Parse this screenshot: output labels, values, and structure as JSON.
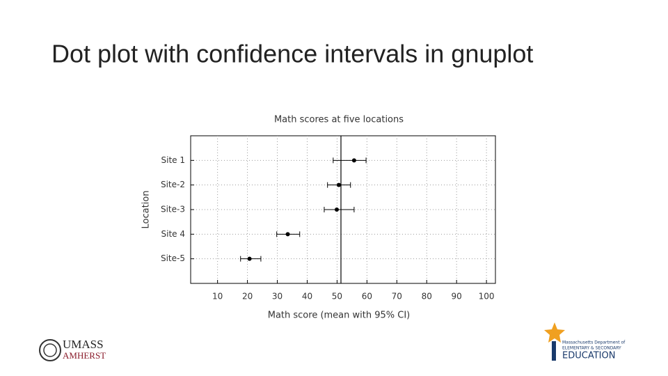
{
  "slide_title": "Dot plot with confidence intervals in gnuplot",
  "chart_data": {
    "type": "dot",
    "title": "Math scores at five locations",
    "xlabel": "Math score (mean with 95% CI)",
    "ylabel": "Location",
    "categories": [
      "Site 1",
      "Site-2",
      "Site-3",
      "Site 4",
      "Site-5"
    ],
    "values": [
      55.7,
      50.6,
      49.9,
      33.5,
      20.7
    ],
    "lower": [
      48.7,
      46.8,
      45.7,
      29.8,
      17.7
    ],
    "upper": [
      59.7,
      54.5,
      55.7,
      37.5,
      24.5
    ],
    "color": "#000000",
    "reference_line": 51.3,
    "xlim": [
      1,
      103
    ],
    "xticks": [
      10,
      20,
      30,
      40,
      50,
      60,
      70,
      80,
      90,
      100
    ],
    "grid": true
  },
  "logos": {
    "umass": [
      "UMASS",
      "AMHERST"
    ],
    "ese": [
      "Massachusetts Department of",
      "ELEMENTARY & SECONDARY",
      "EDUCATION"
    ]
  }
}
